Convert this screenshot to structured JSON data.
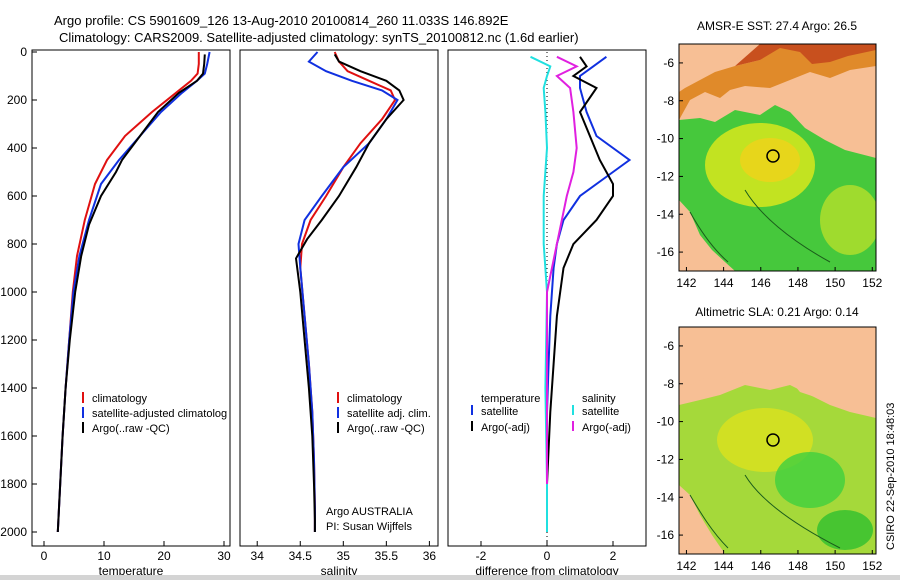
{
  "header": {
    "title_line1": "Argo profile: CS 5901609_126 13-Aug-2010 20100814_260 11.033S 146.892E",
    "title_line2": "Climatology: CARS2009. Satellite-adjusted climatology: synTS_20100812.nc (1.6d earlier)"
  },
  "credit": "CSIRO 22-Sep-2010 18:48:03",
  "colors": {
    "climatology": "#e01010",
    "satellite": "#1030e0",
    "argo": "#000000",
    "cyan": "#20e0e0",
    "magenta": "#e020e0",
    "land": "#f7bf95",
    "ocean_green": "#3fcf3f",
    "ocean_yellow": "#d8e020"
  },
  "chart_data": [
    {
      "type": "line",
      "id": "temperature",
      "xlabel": "temperature",
      "xlim": [
        -2,
        31
      ],
      "ylim": [
        2050,
        0
      ],
      "xticks": [
        0,
        10,
        20,
        30
      ],
      "yticks": [
        0,
        200,
        400,
        600,
        800,
        1000,
        1200,
        1400,
        1600,
        1800,
        2000
      ],
      "legend": [
        "climatology",
        "satellite-adjusted climatolog",
        "Argo(..raw -QC)"
      ],
      "legend_position": "lower-middle",
      "series": [
        {
          "name": "climatology",
          "color": "climatology",
          "x": [
            25.8,
            25.8,
            25.6,
            24.5,
            22,
            18,
            13.5,
            10.5,
            8.5,
            6.8,
            5.5,
            4.8,
            4.2,
            3.6,
            3.1,
            2.7,
            2.4,
            2.3
          ],
          "y": [
            0,
            50,
            90,
            120,
            170,
            250,
            350,
            450,
            550,
            700,
            850,
            1000,
            1200,
            1400,
            1600,
            1800,
            1950,
            2000
          ]
        },
        {
          "name": "satellite-adjusted climatolog",
          "color": "satellite",
          "x": [
            27.6,
            27.2,
            26.8,
            25.5,
            23,
            19.5,
            16,
            12.5,
            9.5,
            7.5,
            5.9,
            4.9,
            4.2,
            3.6,
            3.1,
            2.7,
            2.4,
            2.3
          ],
          "y": [
            0,
            50,
            90,
            120,
            170,
            250,
            350,
            450,
            550,
            700,
            850,
            1000,
            1200,
            1400,
            1600,
            1800,
            1950,
            2000
          ]
        },
        {
          "name": "Argo(..raw -QC)",
          "color": "argo",
          "x": [
            26.8,
            26.7,
            26.5,
            25.5,
            22.5,
            19,
            16,
            13,
            12,
            9.5,
            7.5,
            6.2,
            5.2,
            4.3,
            3.6,
            3.1,
            2.7,
            2.4,
            2.3
          ],
          "y": [
            10,
            50,
            90,
            120,
            170,
            250,
            350,
            450,
            500,
            600,
            720,
            850,
            1000,
            1200,
            1400,
            1600,
            1800,
            1950,
            2000
          ]
        }
      ]
    },
    {
      "type": "line",
      "id": "salinity",
      "xlabel": "salinity",
      "xlim": [
        33.8,
        36.1
      ],
      "ylim": [
        2050,
        0
      ],
      "xticks": [
        34,
        34.5,
        35,
        35.5,
        36
      ],
      "legend": [
        "climatology",
        "satellite adj. clim.",
        "Argo(..raw -QC)"
      ],
      "legend_position": "lower-right",
      "annotation": [
        "Argo AUSTRALIA",
        "PI: Susan Wijffels"
      ],
      "series": [
        {
          "name": "climatology",
          "color": "climatology",
          "x": [
            34.9,
            34.95,
            35.05,
            35.3,
            35.55,
            35.6,
            35.45,
            35.2,
            35.0,
            34.8,
            34.62,
            34.52,
            34.5,
            34.55,
            34.6,
            34.64,
            34.66,
            34.67,
            34.67
          ],
          "y": [
            0,
            40,
            80,
            120,
            160,
            200,
            280,
            380,
            480,
            600,
            700,
            800,
            900,
            1100,
            1300,
            1500,
            1700,
            1900,
            2000
          ]
        },
        {
          "name": "satellite adj. clim.",
          "color": "satellite",
          "x": [
            34.7,
            34.6,
            34.8,
            35.1,
            35.45,
            35.63,
            35.5,
            35.3,
            35.0,
            34.75,
            34.55,
            34.48,
            34.5,
            34.55,
            34.6,
            34.64,
            34.66,
            34.67,
            34.67
          ],
          "y": [
            0,
            40,
            80,
            120,
            160,
            200,
            280,
            380,
            480,
            600,
            700,
            800,
            900,
            1100,
            1300,
            1500,
            1700,
            1900,
            2000
          ]
        },
        {
          "name": "Argo(..raw -QC)",
          "color": "argo",
          "x": [
            34.9,
            34.95,
            35.2,
            35.5,
            35.65,
            35.7,
            35.5,
            35.3,
            35.15,
            34.95,
            34.75,
            34.58,
            34.45,
            34.5,
            34.55,
            34.6,
            34.64,
            34.66,
            34.67,
            34.67
          ],
          "y": [
            10,
            40,
            80,
            120,
            160,
            200,
            280,
            380,
            480,
            600,
            700,
            780,
            860,
            1000,
            1200,
            1400,
            1600,
            1800,
            1950,
            2000
          ]
        }
      ]
    },
    {
      "type": "line",
      "id": "difference",
      "xlabel": "difference from climatology",
      "xlim": [
        -3,
        3
      ],
      "ylim": [
        2050,
        0
      ],
      "xticks": [
        -2,
        0,
        2
      ],
      "legend_groups": [
        {
          "title": "temperature",
          "items": [
            "satellite",
            "Argo(-adj)"
          ]
        },
        {
          "title": "salinity",
          "items": [
            "satellite",
            "Argo(-adj)"
          ]
        }
      ],
      "series": [
        {
          "name": "temperature satellite",
          "color": "satellite",
          "x": [
            1.8,
            1.4,
            1.0,
            1.0,
            1.2,
            1.5,
            2.5,
            2.0,
            1.0,
            0.5,
            0.3,
            0.2,
            0.1,
            0.05,
            0.0,
            0.0,
            0.0
          ],
          "y": [
            20,
            60,
            100,
            150,
            250,
            350,
            450,
            500,
            600,
            700,
            800,
            900,
            1100,
            1300,
            1500,
            1800,
            2000
          ]
        },
        {
          "name": "temperature Argo(-adj)",
          "color": "argo",
          "x": [
            1.0,
            1.2,
            0.8,
            1.5,
            1.0,
            1.3,
            1.6,
            2.0,
            2.0,
            1.5,
            0.8,
            0.5,
            0.3,
            0.2,
            0.1,
            0.0,
            0.0
          ],
          "y": [
            20,
            60,
            100,
            150,
            250,
            350,
            450,
            550,
            600,
            700,
            800,
            900,
            1100,
            1300,
            1500,
            1800,
            2000
          ]
        },
        {
          "name": "salinity satellite",
          "color": "cyan",
          "x": [
            -0.5,
            0.1,
            0.0,
            -0.1,
            -0.05,
            0.0,
            -0.1,
            -0.1,
            0.0,
            -0.05,
            0.0,
            0.0
          ],
          "y": [
            20,
            60,
            100,
            150,
            250,
            400,
            600,
            800,
            1000,
            1400,
            1800,
            2000
          ]
        },
        {
          "name": "salinity Argo(-adj)",
          "color": "magenta",
          "x": [
            0.3,
            0.9,
            0.3,
            0.7,
            0.8,
            0.9,
            0.8,
            0.6,
            0.3,
            0.0,
            0.0,
            0.0
          ],
          "y": [
            20,
            60,
            100,
            150,
            250,
            400,
            500,
            600,
            800,
            1000,
            1400,
            1800
          ]
        }
      ]
    },
    {
      "type": "heatmap",
      "id": "sst-map",
      "title": "AMSR-E SST: 27.4 Argo: 26.5",
      "xlim": [
        141.6,
        152.2
      ],
      "ylim": [
        -17,
        -5
      ],
      "xticks": [
        142,
        144,
        146,
        148,
        150,
        152
      ],
      "yticks": [
        -6,
        -8,
        -10,
        -12,
        -14,
        -16
      ],
      "marker": {
        "lon": 146.892,
        "lat": -11.033
      }
    },
    {
      "type": "heatmap",
      "id": "sla-map",
      "title": "Altimetric SLA: 0.21 Argo: 0.14",
      "xlim": [
        141.6,
        152.2
      ],
      "ylim": [
        -17,
        -5
      ],
      "xticks": [
        142,
        144,
        146,
        148,
        150,
        152
      ],
      "yticks": [
        -6,
        -8,
        -10,
        -12,
        -14,
        -16
      ],
      "marker": {
        "lon": 146.892,
        "lat": -11.033
      }
    }
  ]
}
